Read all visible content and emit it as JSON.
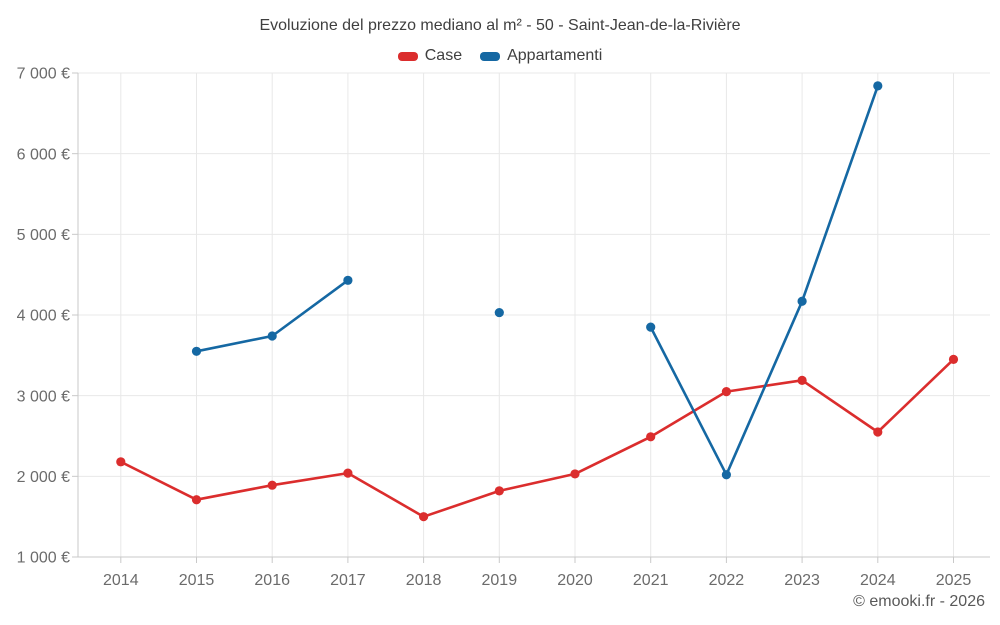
{
  "title": "Evoluzione del prezzo mediano al m² - 50 - Saint-Jean-de-la-Rivière",
  "watermark": "© emooki.fr - 2026",
  "legend": {
    "items": [
      {
        "label": "Case",
        "color": "#db2d2d"
      },
      {
        "label": "Appartamenti",
        "color": "#1568a3"
      }
    ]
  },
  "axes": {
    "x_labels": [
      "2014",
      "2015",
      "2016",
      "2017",
      "2018",
      "2019",
      "2020",
      "2021",
      "2022",
      "2023",
      "2024",
      "2025"
    ],
    "y_labels": [
      "1 000 €",
      "2 000 €",
      "3 000 €",
      "4 000 €",
      "5 000 €",
      "6 000 €",
      "7 000 €"
    ]
  },
  "chart_data": {
    "type": "line",
    "title": "Evoluzione del prezzo mediano al m² - 50 - Saint-Jean-de-la-Rivière",
    "xlabel": "",
    "ylabel": "",
    "categories": [
      2014,
      2015,
      2016,
      2017,
      2018,
      2019,
      2020,
      2021,
      2022,
      2023,
      2024,
      2025
    ],
    "series": [
      {
        "name": "Case",
        "color": "#db2d2d",
        "values": [
          2180,
          1710,
          1890,
          2040,
          1500,
          1820,
          2030,
          2490,
          3050,
          3190,
          2550,
          3450
        ]
      },
      {
        "name": "Appartamenti",
        "color": "#1568a3",
        "values": [
          null,
          3550,
          3740,
          4430,
          null,
          4030,
          null,
          3850,
          2020,
          4170,
          6840,
          null
        ]
      }
    ],
    "ylim": [
      1000,
      7000
    ],
    "ytick_step": 1000,
    "ytick_format": "{n} €",
    "grid": true,
    "legend_position": "top"
  },
  "colors": {
    "grid": "#e8e8e8",
    "axis": "#c9c9c9",
    "tick_label": "#6b6b6b",
    "title_text": "#3f3f3f",
    "watermark_text": "#595959"
  }
}
